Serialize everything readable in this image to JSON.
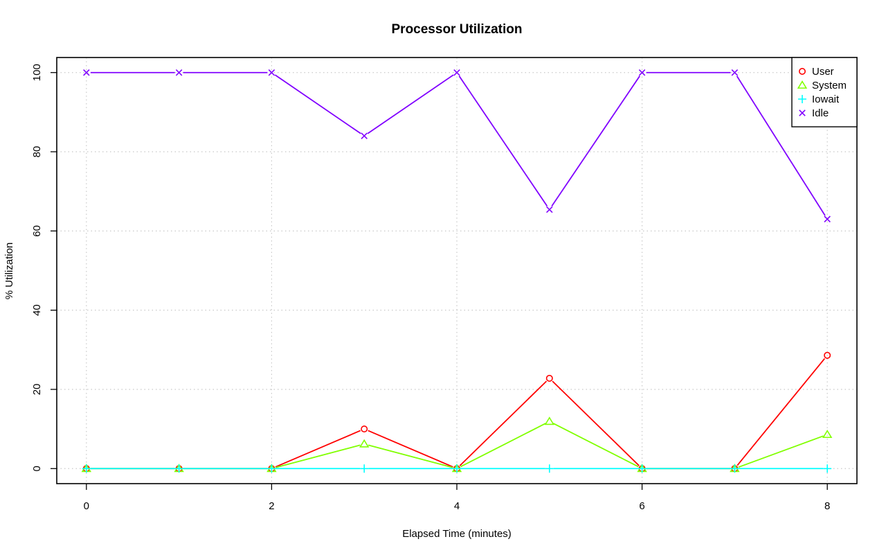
{
  "chart_data": {
    "type": "line",
    "title": "Processor Utilization",
    "xlabel": "Elapsed Time (minutes)",
    "ylabel": "% Utilization",
    "xlim": [
      -0.32,
      8.32
    ],
    "ylim": [
      -3.8,
      103.8
    ],
    "xticks": [
      0,
      2,
      4,
      6,
      8
    ],
    "yticks": [
      0,
      20,
      40,
      60,
      80,
      100
    ],
    "grid": true,
    "legend_position": "top-right",
    "x": [
      0,
      1,
      2,
      3,
      4,
      5,
      6,
      7,
      8
    ],
    "series": [
      {
        "name": "User",
        "color": "#ff0000",
        "marker": "circle",
        "values": [
          0,
          0,
          0,
          10,
          0,
          22.8,
          0,
          0,
          28.6
        ]
      },
      {
        "name": "System",
        "color": "#80ff00",
        "marker": "triangle",
        "values": [
          0,
          0,
          0,
          6.2,
          0,
          11.9,
          0,
          0,
          8.6
        ]
      },
      {
        "name": "Iowait",
        "color": "#00ffff",
        "marker": "plus",
        "values": [
          0,
          0,
          0,
          0,
          0,
          0,
          0,
          0,
          0
        ]
      },
      {
        "name": "Idle",
        "color": "#8000ff",
        "marker": "cross",
        "values": [
          100,
          100,
          100,
          84,
          100,
          65.4,
          100,
          100,
          63
        ]
      }
    ]
  }
}
